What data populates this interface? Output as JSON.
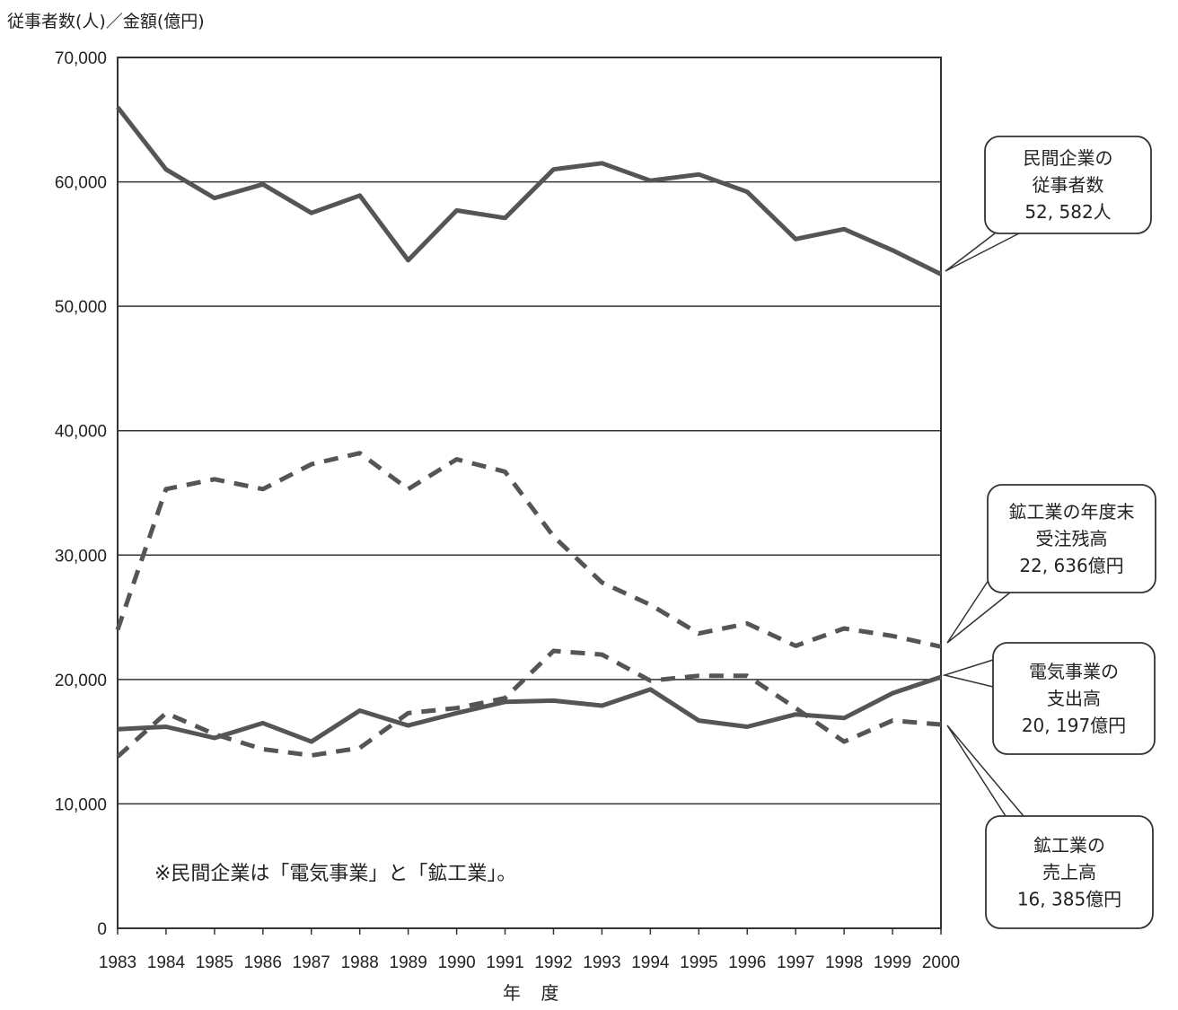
{
  "chart_data": {
    "type": "line",
    "ylabel": "従事者数(人)／金額(億円)",
    "xlabel": "年 度",
    "note": "※民間企業は「電気事業」と「鉱工業」。",
    "ylim": [
      0,
      70000
    ],
    "yticks": [
      "0",
      "10,000",
      "20,000",
      "30,000",
      "40,000",
      "50,000",
      "60,000",
      "70,000"
    ],
    "ytick_values": [
      0,
      10000,
      20000,
      30000,
      40000,
      50000,
      60000,
      70000
    ],
    "grid": true,
    "x": [
      "1983",
      "1984",
      "1985",
      "1986",
      "1987",
      "1988",
      "1989",
      "1990",
      "1991",
      "1992",
      "1993",
      "1994",
      "1995",
      "1996",
      "1997",
      "1998",
      "1999",
      "2000"
    ],
    "series": [
      {
        "key": "employees",
        "style": "solid",
        "color": "#555555",
        "values": [
          66000,
          61000,
          58700,
          59800,
          57500,
          58900,
          53700,
          57700,
          57100,
          61000,
          61500,
          60100,
          60600,
          59200,
          55400,
          56200,
          54500,
          52582
        ],
        "label_lines": [
          "民間企業の",
          "従事者数",
          "52, 582人"
        ]
      },
      {
        "key": "backlog",
        "style": "dashed",
        "color": "#555555",
        "values": [
          24000,
          35300,
          36100,
          35300,
          37300,
          38200,
          35300,
          37700,
          36700,
          31500,
          27800,
          26000,
          23700,
          24500,
          22700,
          24100,
          23500,
          22636
        ],
        "label_lines": [
          "鉱工業の年度末",
          "受注残高",
          "22, 636億円"
        ]
      },
      {
        "key": "electric_spending",
        "style": "solid",
        "color": "#555555",
        "values": [
          16000,
          16200,
          15300,
          16500,
          15000,
          17500,
          16300,
          17300,
          18200,
          18300,
          17900,
          19200,
          16700,
          16200,
          17200,
          16900,
          18900,
          20197
        ],
        "label_lines": [
          "電気事業の",
          "支出高",
          "20, 197億円"
        ]
      },
      {
        "key": "mining_sales",
        "style": "dashed",
        "color": "#555555",
        "values": [
          13800,
          17300,
          15600,
          14400,
          13900,
          14500,
          17300,
          17700,
          18500,
          22300,
          22000,
          19900,
          20300,
          20300,
          17700,
          15000,
          16700,
          16385
        ],
        "label_lines": [
          "鉱工業の",
          "売上高",
          "16, 385億円"
        ]
      }
    ]
  }
}
